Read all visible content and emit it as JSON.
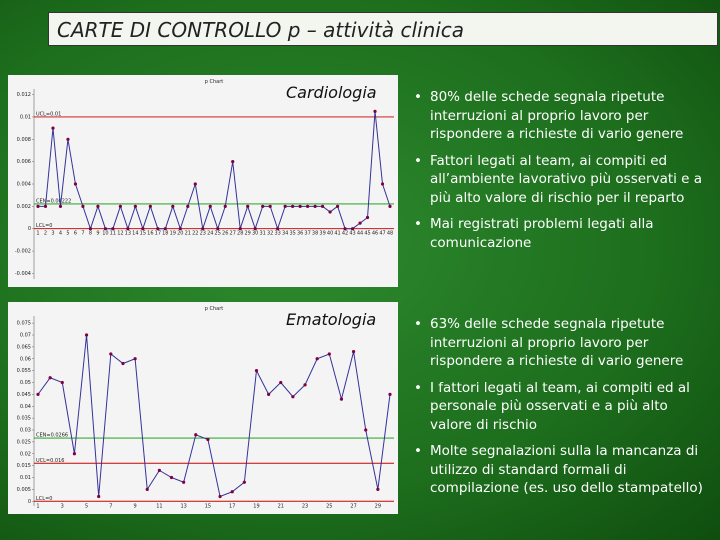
{
  "title": "CARTE DI CONTROLLO p – attività clinica",
  "sections": [
    {
      "name": "Cardiologia",
      "bullets": [
        "80% delle schede segnala ripetute interruzioni al proprio lavoro per rispondere a richieste di vario genere",
        "Fattori legati al team, ai compiti ed all’ambiente lavorativo più osservati e a più alto valore di rischio per il reparto",
        "Mai registrati problemi legati alla comunicazione"
      ]
    },
    {
      "name": "Ematologia",
      "bullets": [
        "63% delle schede segnala ripetute interruzioni al proprio lavoro per rispondere a richieste di vario genere",
        "I fattori legati al team, ai compiti ed al personale più osservati e a più alto valore di rischio",
        "Molte segnalazioni sulla la mancanza di utilizzo di standard formali di compilazione (es. uso dello stampatello)"
      ]
    }
  ],
  "chart_data": [
    {
      "type": "line",
      "title": "p Chart",
      "color": "#333399",
      "marker_color": "#800040",
      "categories": [
        "1",
        "2",
        "3",
        "4",
        "5",
        "6",
        "7",
        "8",
        "9",
        "10",
        "11",
        "12",
        "13",
        "14",
        "15",
        "16",
        "17",
        "18",
        "19",
        "20",
        "21",
        "22",
        "23",
        "24",
        "25",
        "26",
        "27",
        "28",
        "29",
        "30",
        "31",
        "32",
        "33",
        "34",
        "35",
        "36",
        "37",
        "38",
        "39",
        "40",
        "41",
        "42",
        "43",
        "44",
        "45",
        "46",
        "47",
        "48"
      ],
      "values": [
        0.002,
        0.002,
        0.009,
        0.002,
        0.008,
        0.004,
        0.002,
        0,
        0.002,
        0,
        0,
        0.002,
        0,
        0.002,
        0,
        0.002,
        0,
        0,
        0.002,
        0,
        0.002,
        0.004,
        0,
        0.002,
        0,
        0.002,
        0.006,
        0,
        0.002,
        0,
        0.002,
        0.002,
        0,
        0.002,
        0.002,
        0.002,
        0.002,
        0.002,
        0.002,
        0.0015,
        0.002,
        0,
        0,
        0.0005,
        0.001,
        0.0105,
        0.004,
        0.002
      ],
      "ylim": [
        -0.0045,
        0.0125
      ],
      "yticks": [
        0.012,
        0.01,
        0.008,
        0.006,
        0.004,
        0.002,
        0,
        -0.002,
        -0.004
      ],
      "limits": [
        {
          "name": "UCL=0.01",
          "value": 0.01,
          "color": "#cc0000"
        },
        {
          "name": "CEN=0.00222",
          "value": 0.00222,
          "color": "#009900"
        },
        {
          "name": "LCL=0",
          "value": 0,
          "color": "#cc0000"
        }
      ]
    },
    {
      "type": "line",
      "title": "p Chart",
      "color": "#333399",
      "marker_color": "#800040",
      "categories": [
        "1",
        null,
        "3",
        null,
        "5",
        null,
        "7",
        null,
        "9",
        null,
        "11",
        null,
        "13",
        null,
        "15",
        null,
        "17",
        null,
        "19",
        null,
        "21",
        null,
        "23",
        null,
        "25",
        null,
        "27",
        null,
        "29",
        null
      ],
      "values": [
        0.045,
        0.052,
        0.05,
        0.02,
        0.07,
        0.002,
        0.062,
        0.058,
        0.06,
        0.005,
        0.013,
        0.01,
        0.008,
        0.028,
        0.026,
        0.002,
        0.004,
        0.008,
        0.055,
        0.045,
        0.05,
        0.044,
        0.049,
        0.06,
        0.062,
        0.043,
        0.063,
        0.03,
        0.005,
        0.045
      ],
      "ylim": [
        -0.002,
        0.078
      ],
      "yticks": [
        0.075,
        0.07,
        0.065,
        0.06,
        0.055,
        0.05,
        0.045,
        0.04,
        0.035,
        0.03,
        0.025,
        0.02,
        0.015,
        0.01,
        0.005,
        0
      ],
      "limits": [
        {
          "name": "CEN=0.0266",
          "value": 0.0266,
          "color": "#009900"
        },
        {
          "name": "UCL=0.016",
          "value": 0.016,
          "color": "#cc0000"
        },
        {
          "name": "LCL=0",
          "value": 0,
          "color": "#cc0000"
        }
      ]
    }
  ]
}
